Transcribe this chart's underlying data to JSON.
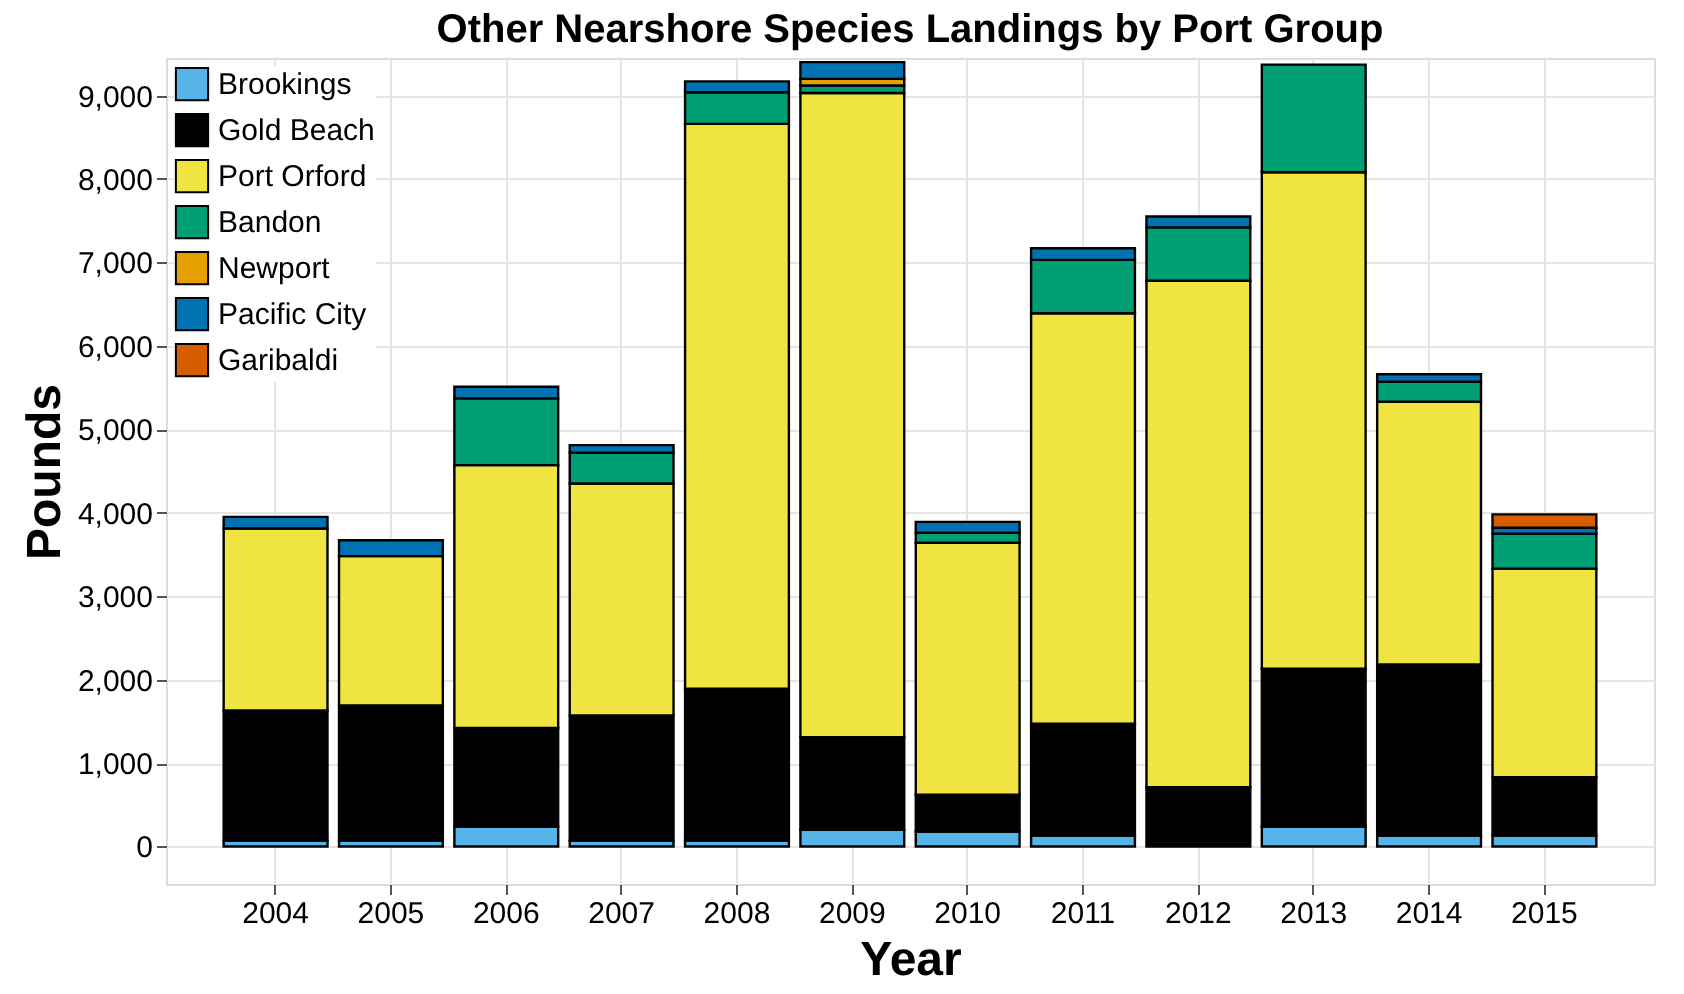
{
  "chart_data": {
    "type": "bar",
    "title": "Other Nearshore Species Landings by Port Group",
    "xlabel": "Year",
    "ylabel": "Pounds",
    "stacked": true,
    "legend": "top left",
    "grid": true,
    "categories": [
      "2004",
      "2005",
      "2006",
      "2007",
      "2008",
      "2009",
      "2010",
      "2011",
      "2012",
      "2013",
      "2014",
      "2015"
    ],
    "series": [
      {
        "name": "Brookings",
        "color": "#56b4e9",
        "values": [
          70,
          70,
          240,
          70,
          70,
          200,
          180,
          130,
          null,
          240,
          130,
          130
        ]
      },
      {
        "name": "Gold Beach",
        "color": "#000000",
        "values": [
          1560,
          1620,
          1180,
          1500,
          1820,
          1110,
          440,
          1340,
          710,
          1890,
          2050,
          700
        ]
      },
      {
        "name": "Port Orford",
        "color": "#f0e442",
        "values": [
          2180,
          1790,
          3150,
          2780,
          6770,
          7720,
          3020,
          4920,
          6070,
          5950,
          3150,
          2500
        ]
      },
      {
        "name": "Bandon",
        "color": "#009e73",
        "values": [
          null,
          null,
          800,
          370,
          380,
          90,
          120,
          640,
          640,
          1290,
          240,
          420
        ]
      },
      {
        "name": "Newport",
        "color": "#e69f00",
        "values": [
          null,
          null,
          null,
          null,
          null,
          80,
          null,
          null,
          null,
          null,
          null,
          null
        ]
      },
      {
        "name": "Pacific City",
        "color": "#0072b2",
        "values": [
          140,
          190,
          140,
          90,
          130,
          200,
          130,
          140,
          130,
          null,
          90,
          70
        ]
      },
      {
        "name": "Garibaldi",
        "color": "#d55e00",
        "values": [
          null,
          null,
          null,
          null,
          null,
          null,
          null,
          null,
          null,
          null,
          null,
          160
        ]
      }
    ],
    "ylim": [
      -450,
      9450
    ],
    "yticks": [
      {
        "value": 0,
        "label": "0"
      },
      {
        "value": 1000,
        "label": "1,000"
      },
      {
        "value": 2000,
        "label": "2,000"
      },
      {
        "value": 3000,
        "label": "3,000"
      },
      {
        "value": 4000,
        "label": "4,000"
      },
      {
        "value": 5000,
        "label": "5,000"
      },
      {
        "value": 6000,
        "label": "6,000"
      },
      {
        "value": 7000,
        "label": "7,000"
      },
      {
        "value": 8000,
        "label": "8,000"
      },
      {
        "value": 9000,
        "label": "9,000"
      }
    ]
  }
}
